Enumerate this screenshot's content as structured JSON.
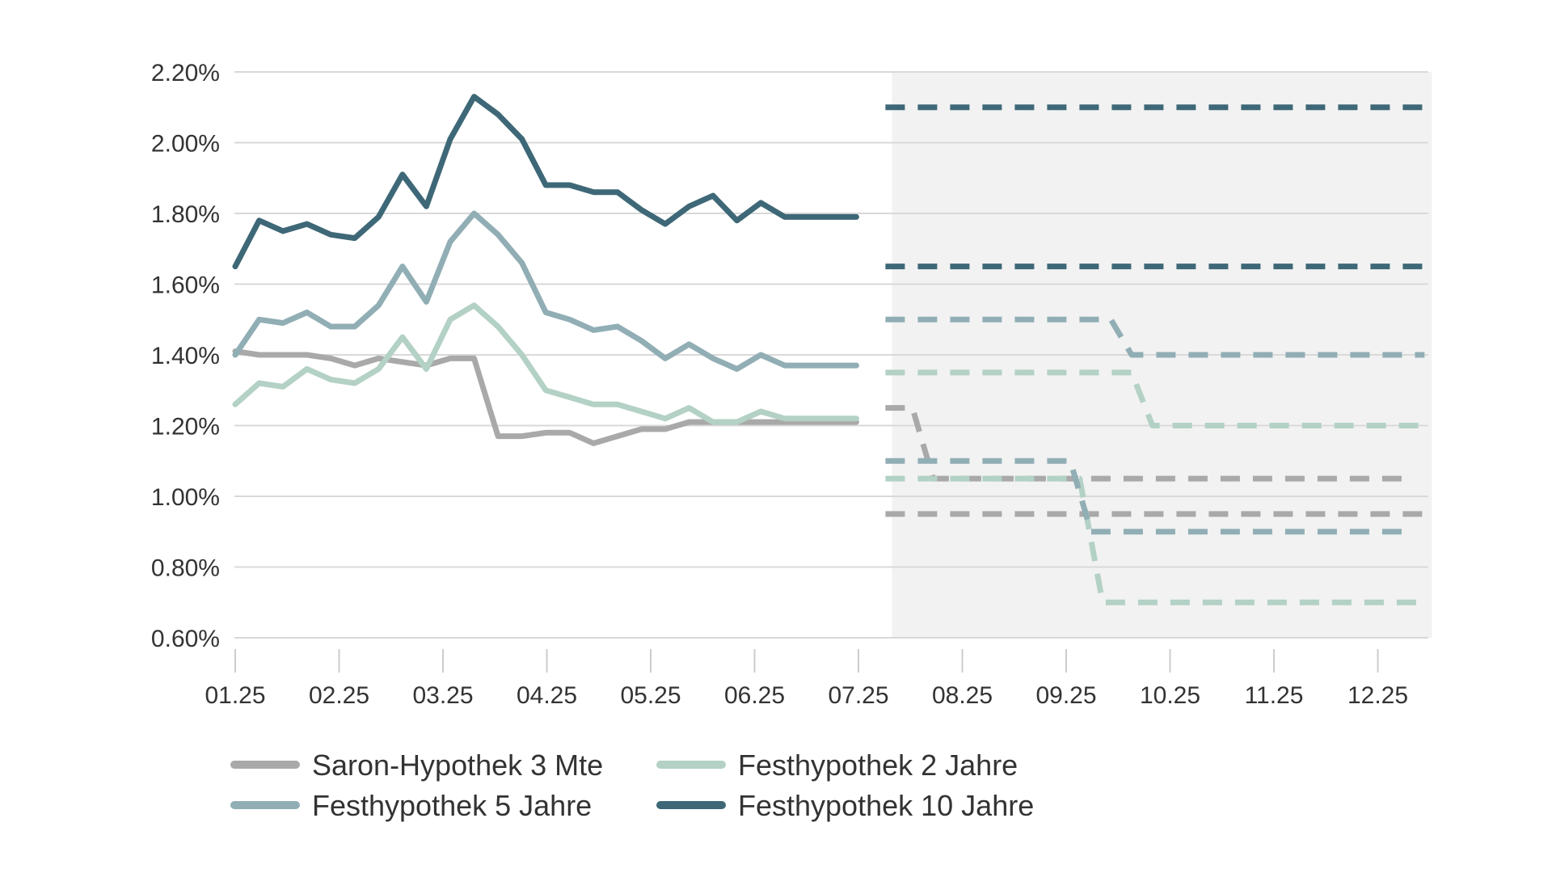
{
  "chart_data": {
    "type": "line",
    "title": "",
    "xlabel": "",
    "ylabel": "",
    "ylim": [
      0.6,
      2.2
    ],
    "y_ticks": [
      "0.60%",
      "0.80%",
      "1.00%",
      "1.20%",
      "1.40%",
      "1.60%",
      "1.80%",
      "2.00%",
      "2.20%"
    ],
    "y_tick_values": [
      0.6,
      0.8,
      1.0,
      1.2,
      1.4,
      1.6,
      1.8,
      2.0,
      2.2
    ],
    "x_ticks": [
      "01.25",
      "02.25",
      "03.25",
      "04.25",
      "05.25",
      "06.25",
      "07.25",
      "08.25",
      "09.25",
      "10.25",
      "11.25",
      "12.25"
    ],
    "grid": "horizontal",
    "legend_position": "bottom",
    "forecast_region": {
      "start_month": 6.3,
      "end_month": 11.45,
      "fill": "#f2f2f2"
    },
    "series": [
      {
        "name": "Saron-Hypothek 3 Mte",
        "color": "#a9a9a9",
        "history": {
          "x": [
            0.0,
            0.23,
            0.46,
            0.69,
            0.92,
            1.15,
            1.38,
            1.61,
            1.84,
            2.07,
            2.3,
            2.53,
            2.76,
            2.99,
            3.22,
            3.45,
            3.68,
            3.91,
            4.14,
            4.37,
            4.6,
            4.83,
            5.06,
            5.29,
            5.52,
            5.75,
            5.98
          ],
          "y": [
            1.41,
            1.4,
            1.4,
            1.4,
            1.39,
            1.37,
            1.39,
            1.38,
            1.37,
            1.39,
            1.39,
            1.17,
            1.17,
            1.18,
            1.18,
            1.15,
            1.17,
            1.19,
            1.19,
            1.21,
            1.21,
            1.21,
            1.21,
            1.21,
            1.21,
            1.21,
            1.21
          ]
        },
        "forecasts": [
          {
            "x": [
              6.26,
              6.52,
              6.72,
              11.35
            ],
            "y": [
              1.25,
              1.25,
              1.05,
              1.05
            ]
          },
          {
            "x": [
              6.26,
              11.45
            ],
            "y": [
              0.95,
              0.95
            ]
          }
        ]
      },
      {
        "name": "Festhypothek 2 Jahre",
        "color": "#b3d1c5",
        "history": {
          "x": [
            0.0,
            0.23,
            0.46,
            0.69,
            0.92,
            1.15,
            1.38,
            1.61,
            1.84,
            2.07,
            2.3,
            2.53,
            2.76,
            2.99,
            3.22,
            3.45,
            3.68,
            3.91,
            4.14,
            4.37,
            4.6,
            4.83,
            5.06,
            5.29,
            5.52,
            5.75,
            5.98
          ],
          "y": [
            1.26,
            1.32,
            1.31,
            1.36,
            1.33,
            1.32,
            1.36,
            1.45,
            1.36,
            1.5,
            1.54,
            1.48,
            1.4,
            1.3,
            1.28,
            1.26,
            1.26,
            1.24,
            1.22,
            1.25,
            1.21,
            1.21,
            1.24,
            1.22,
            1.22,
            1.22,
            1.22
          ]
        },
        "forecasts": [
          {
            "x": [
              6.26,
              8.63,
              8.83,
              11.45
            ],
            "y": [
              1.35,
              1.35,
              1.2,
              1.2
            ]
          },
          {
            "x": [
              6.26,
              8.13,
              8.35,
              11.45
            ],
            "y": [
              1.05,
              1.05,
              0.7,
              0.7
            ]
          }
        ]
      },
      {
        "name": "Festhypothek 5 Jahre",
        "color": "#91aeb5",
        "history": {
          "x": [
            0.0,
            0.23,
            0.46,
            0.69,
            0.92,
            1.15,
            1.38,
            1.61,
            1.84,
            2.07,
            2.3,
            2.53,
            2.76,
            2.99,
            3.22,
            3.45,
            3.68,
            3.91,
            4.14,
            4.37,
            4.6,
            4.83,
            5.06,
            5.29,
            5.52,
            5.75,
            5.98
          ],
          "y": [
            1.4,
            1.5,
            1.49,
            1.52,
            1.48,
            1.48,
            1.54,
            1.65,
            1.55,
            1.72,
            1.8,
            1.74,
            1.66,
            1.52,
            1.5,
            1.47,
            1.48,
            1.44,
            1.39,
            1.43,
            1.39,
            1.36,
            1.4,
            1.37,
            1.37,
            1.37,
            1.37
          ]
        },
        "forecasts": [
          {
            "x": [
              6.26,
              8.43,
              8.63,
              11.45
            ],
            "y": [
              1.5,
              1.5,
              1.4,
              1.4
            ]
          },
          {
            "x": [
              6.26,
              8.04,
              8.24,
              11.35
            ],
            "y": [
              1.1,
              1.1,
              0.9,
              0.9
            ]
          }
        ]
      },
      {
        "name": "Festhypothek 10 Jahre",
        "color": "#3e6877",
        "history": {
          "x": [
            0.0,
            0.23,
            0.46,
            0.69,
            0.92,
            1.15,
            1.38,
            1.61,
            1.84,
            2.07,
            2.3,
            2.53,
            2.76,
            2.99,
            3.22,
            3.45,
            3.68,
            3.91,
            4.14,
            4.37,
            4.6,
            4.83,
            5.06,
            5.29,
            5.52,
            5.75,
            5.98
          ],
          "y": [
            1.65,
            1.78,
            1.75,
            1.77,
            1.74,
            1.73,
            1.79,
            1.91,
            1.82,
            2.01,
            2.13,
            2.08,
            2.01,
            1.88,
            1.88,
            1.86,
            1.86,
            1.81,
            1.77,
            1.82,
            1.85,
            1.78,
            1.83,
            1.79,
            1.79,
            1.79,
            1.79
          ]
        },
        "forecasts": [
          {
            "x": [
              6.26,
              11.45
            ],
            "y": [
              2.1,
              2.1
            ]
          },
          {
            "x": [
              6.26,
              11.45
            ],
            "y": [
              1.65,
              1.65
            ]
          }
        ]
      }
    ],
    "legend_rows": [
      [
        "Saron-Hypothek 3 Mte",
        "Festhypothek 2 Jahre"
      ],
      [
        "Festhypothek 5 Jahre",
        "Festhypothek 10 Jahre"
      ]
    ]
  }
}
